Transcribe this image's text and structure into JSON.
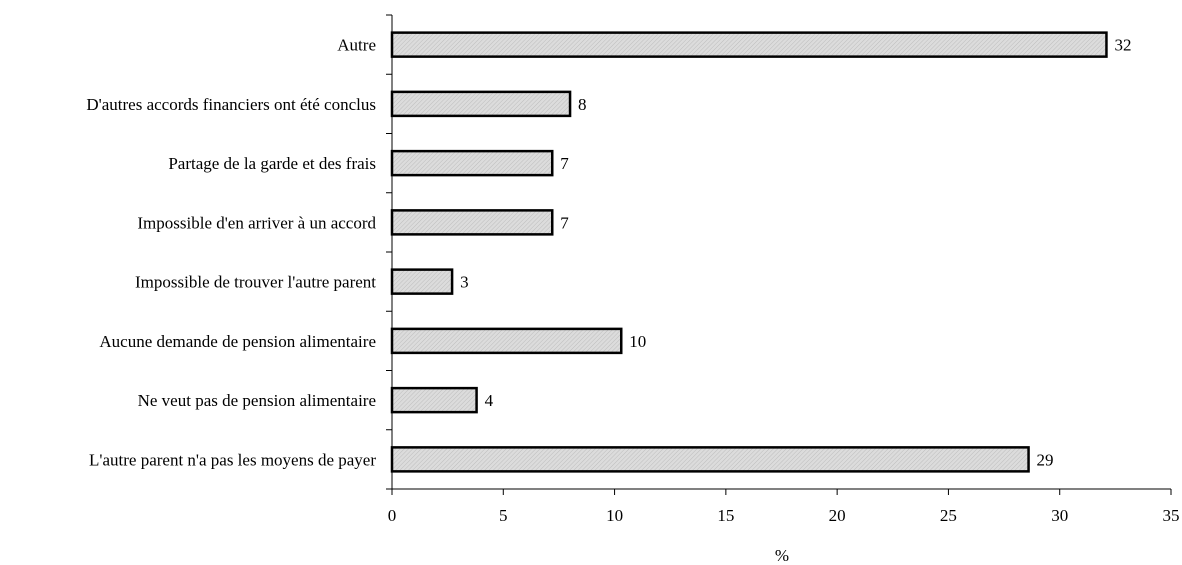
{
  "chart_data": {
    "type": "bar",
    "orientation": "horizontal",
    "categories": [
      "Autre",
      "D'autres accords financiers ont été conclus",
      "Partage de la garde et des frais",
      "Impossible d'en arriver à un accord",
      "Impossible de trouver l'autre parent",
      "Aucune demande de pension alimentaire",
      "Ne veut pas de pension alimentaire",
      "L'autre parent n'a pas les moyens de payer"
    ],
    "values": [
      32.1,
      8.0,
      7.2,
      7.2,
      2.7,
      10.3,
      3.8,
      28.6
    ],
    "data_labels": [
      "32",
      "8",
      "7",
      "7",
      "3",
      "10",
      "4",
      "29"
    ],
    "xlabel": "%",
    "xlim": [
      0,
      35
    ],
    "xticks": [
      0,
      5,
      10,
      15,
      20,
      25,
      30,
      35
    ],
    "grid": false,
    "legend": "none",
    "bar_fill": "#d9d9d9",
    "bar_stroke": "#000000"
  }
}
